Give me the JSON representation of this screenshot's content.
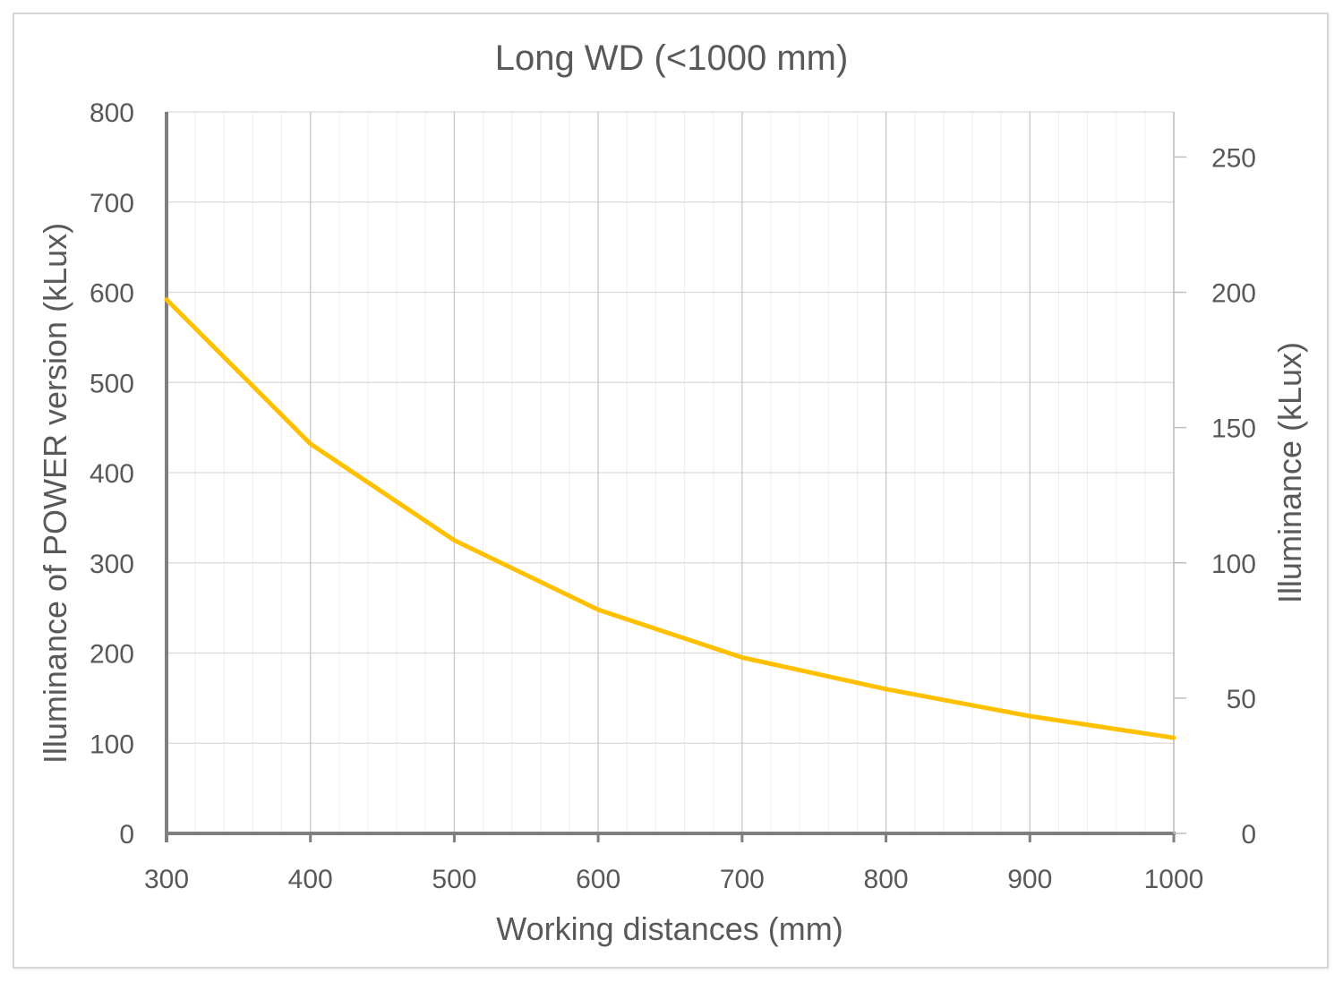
{
  "chart_data": {
    "type": "line",
    "title": "Long WD (<1000 mm)",
    "xlabel": "Working distances (mm)",
    "ylabel": "Illuminance of POWER version (kLux)",
    "y2label": "Illuminance (kLux)",
    "xlim": [
      300,
      1000
    ],
    "ylim": [
      0,
      800
    ],
    "y2lim": [
      0,
      266.67
    ],
    "x_ticks": [
      "300",
      "400",
      "500",
      "600",
      "700",
      "800",
      "900",
      "1000"
    ],
    "y_ticks": [
      "0",
      "100",
      "200",
      "300",
      "400",
      "500",
      "600",
      "700",
      "800"
    ],
    "y2_ticks": [
      "0",
      "50",
      "100",
      "150",
      "200",
      "250"
    ],
    "grid": true,
    "x": [
      300,
      400,
      500,
      600,
      700,
      800,
      900,
      1000
    ],
    "series": [
      {
        "values": [
          592,
          432,
          325,
          248,
          195,
          160,
          130,
          106
        ],
        "color": "#FFC000",
        "axis": "left"
      }
    ]
  }
}
